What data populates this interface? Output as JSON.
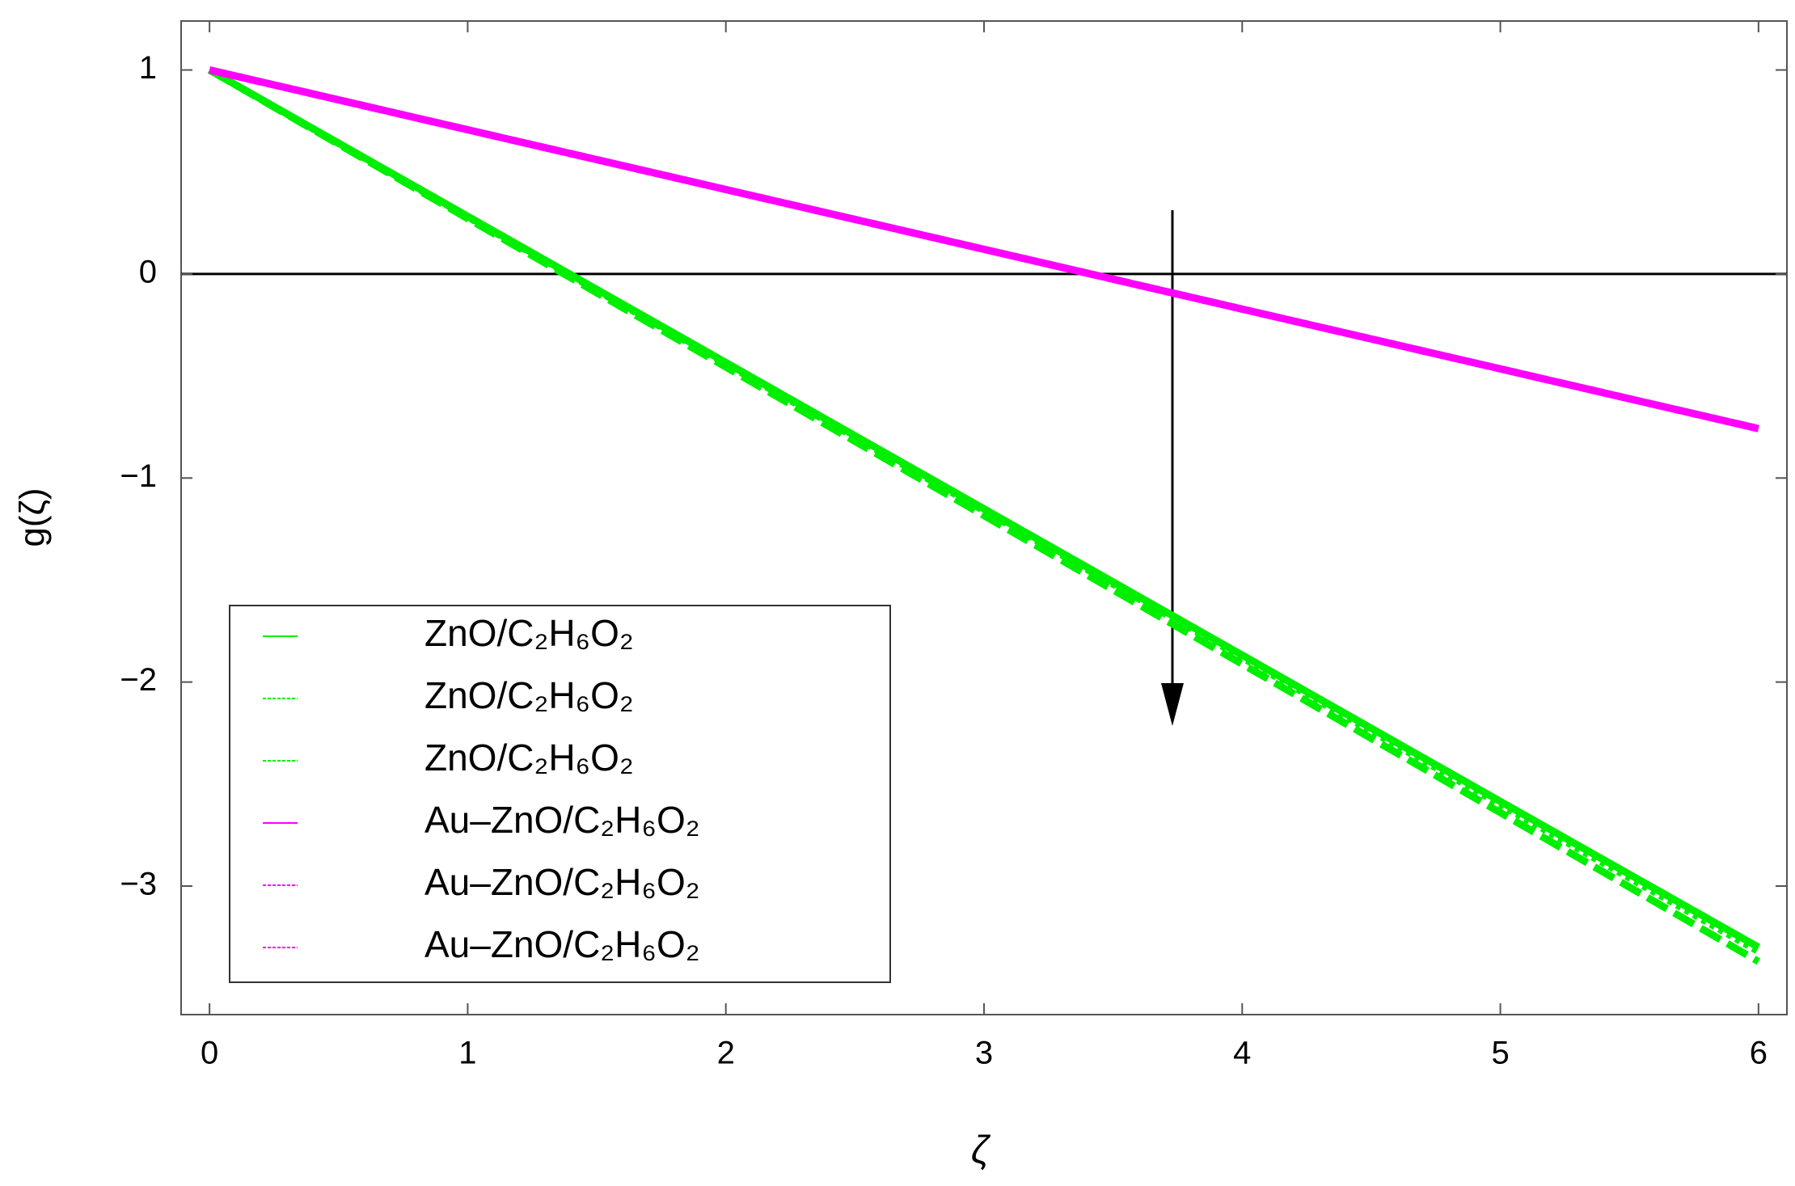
{
  "chart_data": {
    "type": "line",
    "xlabel": "ζ",
    "ylabel": "g(ζ)",
    "x": [
      0,
      1,
      2,
      3,
      4,
      5,
      6
    ],
    "series": [
      {
        "name": "ZnO/C₂H₆O₂",
        "color": "#00ee00",
        "dash": "solid",
        "values": [
          1,
          0.283,
          -0.434,
          -1.151,
          -1.868,
          -2.585,
          -3.3
        ]
      },
      {
        "name": "ZnO/C₂H₆O₂",
        "color": "#00ee00",
        "dash": "dotted",
        "values": [
          1,
          0.28,
          -0.44,
          -1.16,
          -1.88,
          -2.6,
          -3.32
        ]
      },
      {
        "name": "ZnO/C₂H₆O₂",
        "color": "#00ee00",
        "dash": "dashed",
        "values": [
          1,
          0.272,
          -0.456,
          -1.184,
          -1.912,
          -2.64,
          -3.37
        ]
      },
      {
        "name": "Au–ZnO/C₂H₆O₂",
        "color": "#ff00ff",
        "dash": "solid",
        "values": [
          1,
          0.707,
          0.414,
          0.121,
          -0.172,
          -0.465,
          -0.758
        ]
      },
      {
        "name": "Au–ZnO/C₂H₆O₂",
        "color": "#ff00ff",
        "dash": "dotted",
        "values": [
          1,
          0.707,
          0.414,
          0.121,
          -0.172,
          -0.465,
          -0.758
        ]
      },
      {
        "name": "Au–ZnO/C₂H₆O₂",
        "color": "#ff00ff",
        "dash": "dashed",
        "values": [
          1,
          0.707,
          0.414,
          0.121,
          -0.172,
          -0.465,
          -0.758
        ]
      }
    ],
    "xlim": [
      -0.11,
      6.11
    ],
    "ylim": [
      -3.63,
      1.24
    ],
    "xticks": [
      0,
      1,
      2,
      3,
      4,
      5,
      6
    ],
    "yticks": [
      {
        "value": -3,
        "label": "−3"
      },
      {
        "value": -2,
        "label": "−2"
      },
      {
        "value": -1,
        "label": "−1"
      },
      0,
      1
    ],
    "grid": false,
    "legend": "lower left"
  }
}
